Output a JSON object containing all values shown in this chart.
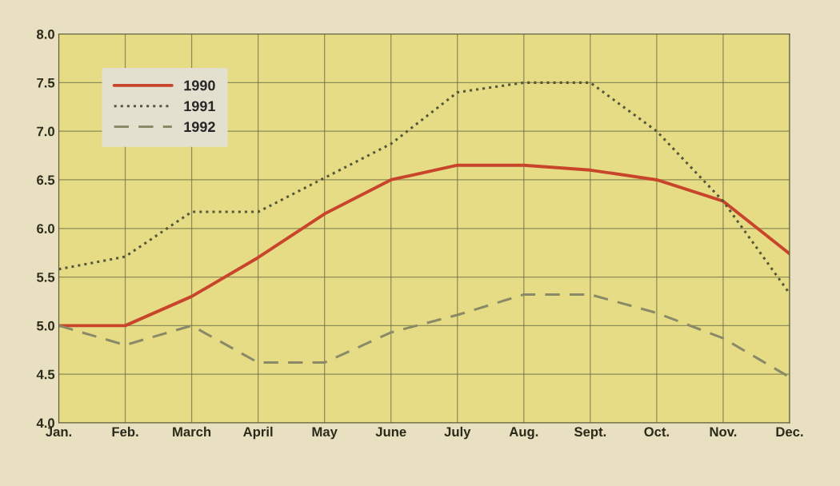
{
  "chart_data": {
    "type": "line",
    "categories": [
      "Jan.",
      "Feb.",
      "March",
      "April",
      "May",
      "June",
      "July",
      "Aug.",
      "Sept.",
      "Oct.",
      "Nov.",
      "Dec."
    ],
    "series": [
      {
        "name": "1990",
        "color": "#c8442a",
        "line_style": "solid",
        "values": [
          5.0,
          5.0,
          5.3,
          5.7,
          6.15,
          6.5,
          6.65,
          6.65,
          6.6,
          6.5,
          6.28,
          5.74
        ]
      },
      {
        "name": "1991",
        "color": "#55573a",
        "line_style": "dotted",
        "values": [
          5.58,
          5.71,
          6.17,
          6.17,
          6.52,
          6.87,
          7.4,
          7.5,
          7.5,
          7.0,
          6.28,
          5.33
        ]
      },
      {
        "name": "1992",
        "color": "#8a8a68",
        "line_style": "dashed",
        "values": [
          5.0,
          4.8,
          5.0,
          4.62,
          4.62,
          4.93,
          5.11,
          5.32,
          5.32,
          5.13,
          4.87,
          4.47
        ]
      }
    ],
    "ylim": [
      4,
      8
    ],
    "yticks": [
      {
        "value": 4,
        "label": "4.0"
      },
      4.5,
      {
        "value": 5,
        "label": "5.0"
      },
      5.5,
      {
        "value": 6,
        "label": "6.0"
      },
      6.5,
      {
        "value": 7,
        "label": "7.0"
      },
      7.5,
      {
        "value": 8,
        "label": "8.0"
      }
    ],
    "grid": true,
    "legend": "top left",
    "marker": "none"
  }
}
